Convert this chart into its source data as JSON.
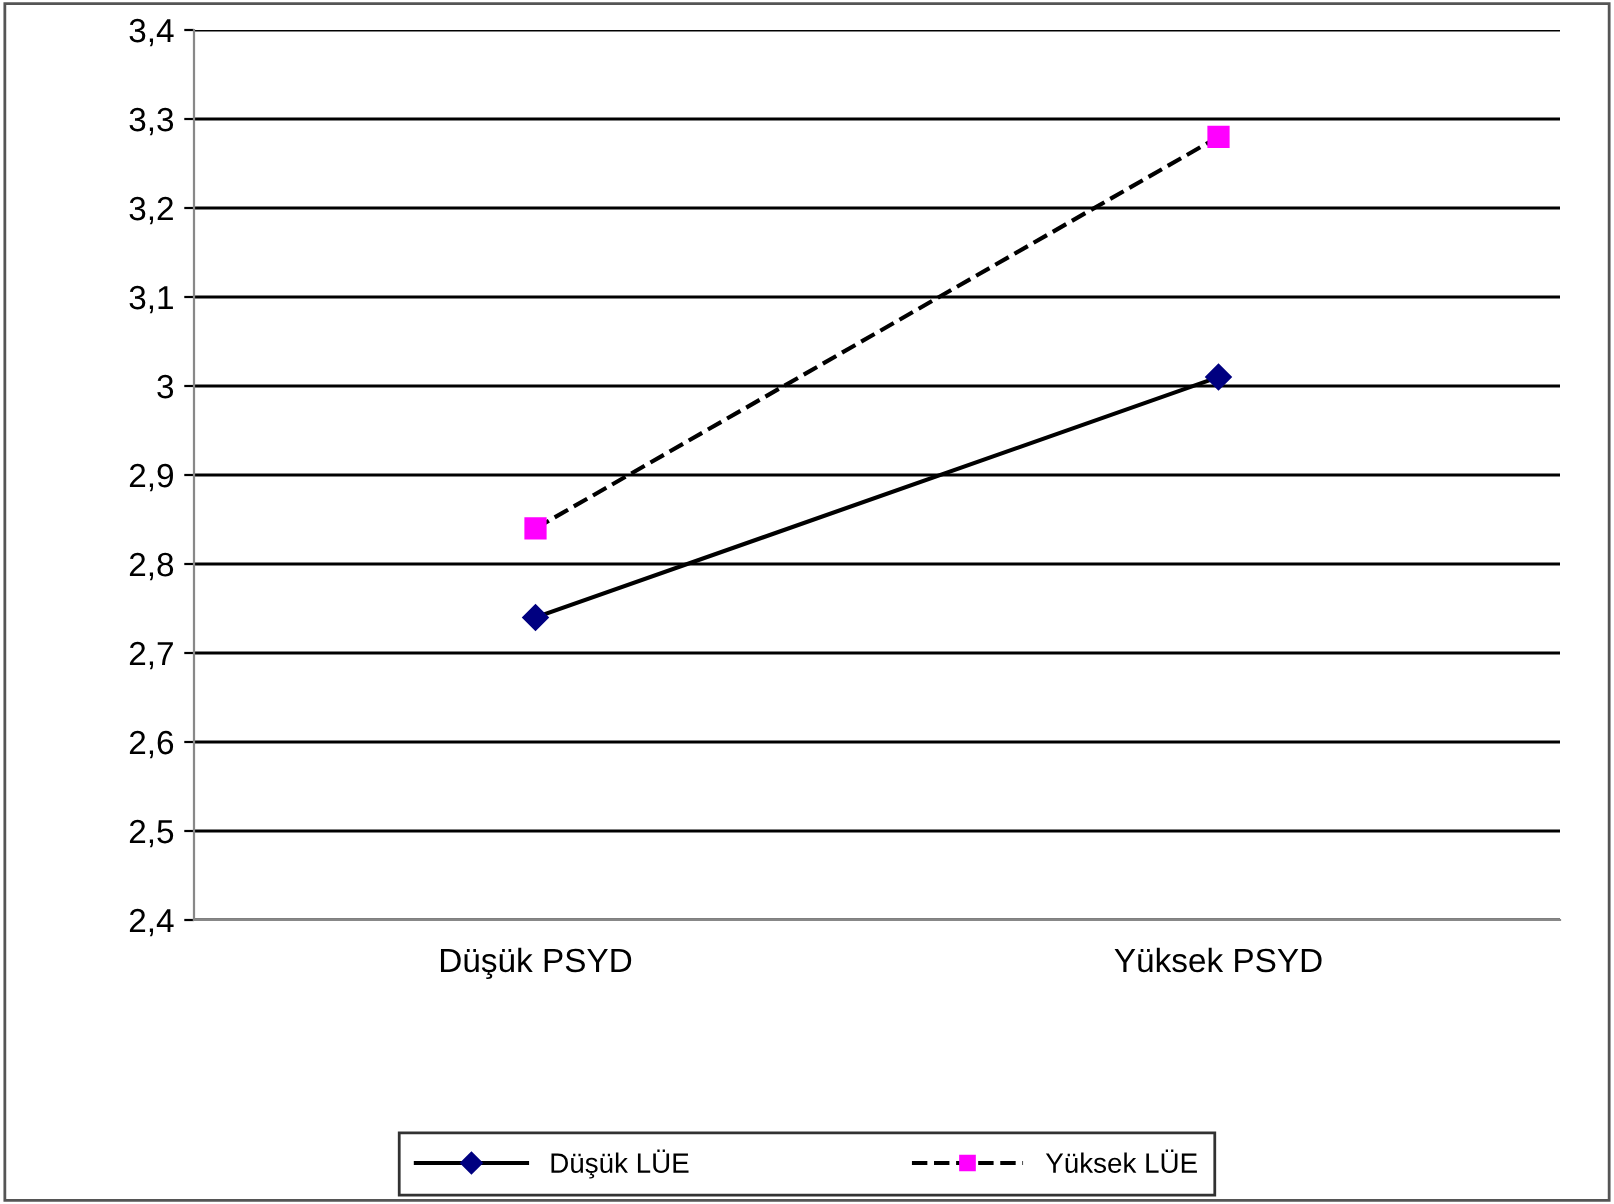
{
  "chart_data": {
    "type": "line",
    "categories": [
      "Düşük PSYD",
      "Yüksek PSYD"
    ],
    "series": [
      {
        "name": "Düşük LÜE",
        "color": "#000000",
        "colors": [
          "#000080",
          "#000080"
        ],
        "marker": "diamond",
        "line_style": "solid",
        "values": [
          2.74,
          3.01
        ]
      },
      {
        "name": "Yüksek LÜE",
        "color": "#000000",
        "colors": [
          "#ff00ff",
          "#ff00ff"
        ],
        "marker": "square",
        "line_style": "dashed",
        "values": [
          2.84,
          3.28
        ]
      }
    ],
    "ylim": [
      2.4,
      3.4
    ],
    "yticks": [
      {
        "value": 2.4,
        "label": "2,4"
      },
      {
        "value": 2.5,
        "label": "2,5"
      },
      {
        "value": 2.6,
        "label": "2,6"
      },
      {
        "value": 2.7,
        "label": "2,7"
      },
      {
        "value": 2.8,
        "label": "2,8"
      },
      {
        "value": 2.9,
        "label": "2,9"
      },
      3,
      {
        "value": 3.1,
        "label": "3,1"
      },
      {
        "value": 3.2,
        "label": "3,2"
      },
      {
        "value": 3.3,
        "label": "3,3"
      },
      {
        "value": 3.4,
        "label": "3,4"
      }
    ],
    "grid": "y",
    "legend": "bottom"
  }
}
